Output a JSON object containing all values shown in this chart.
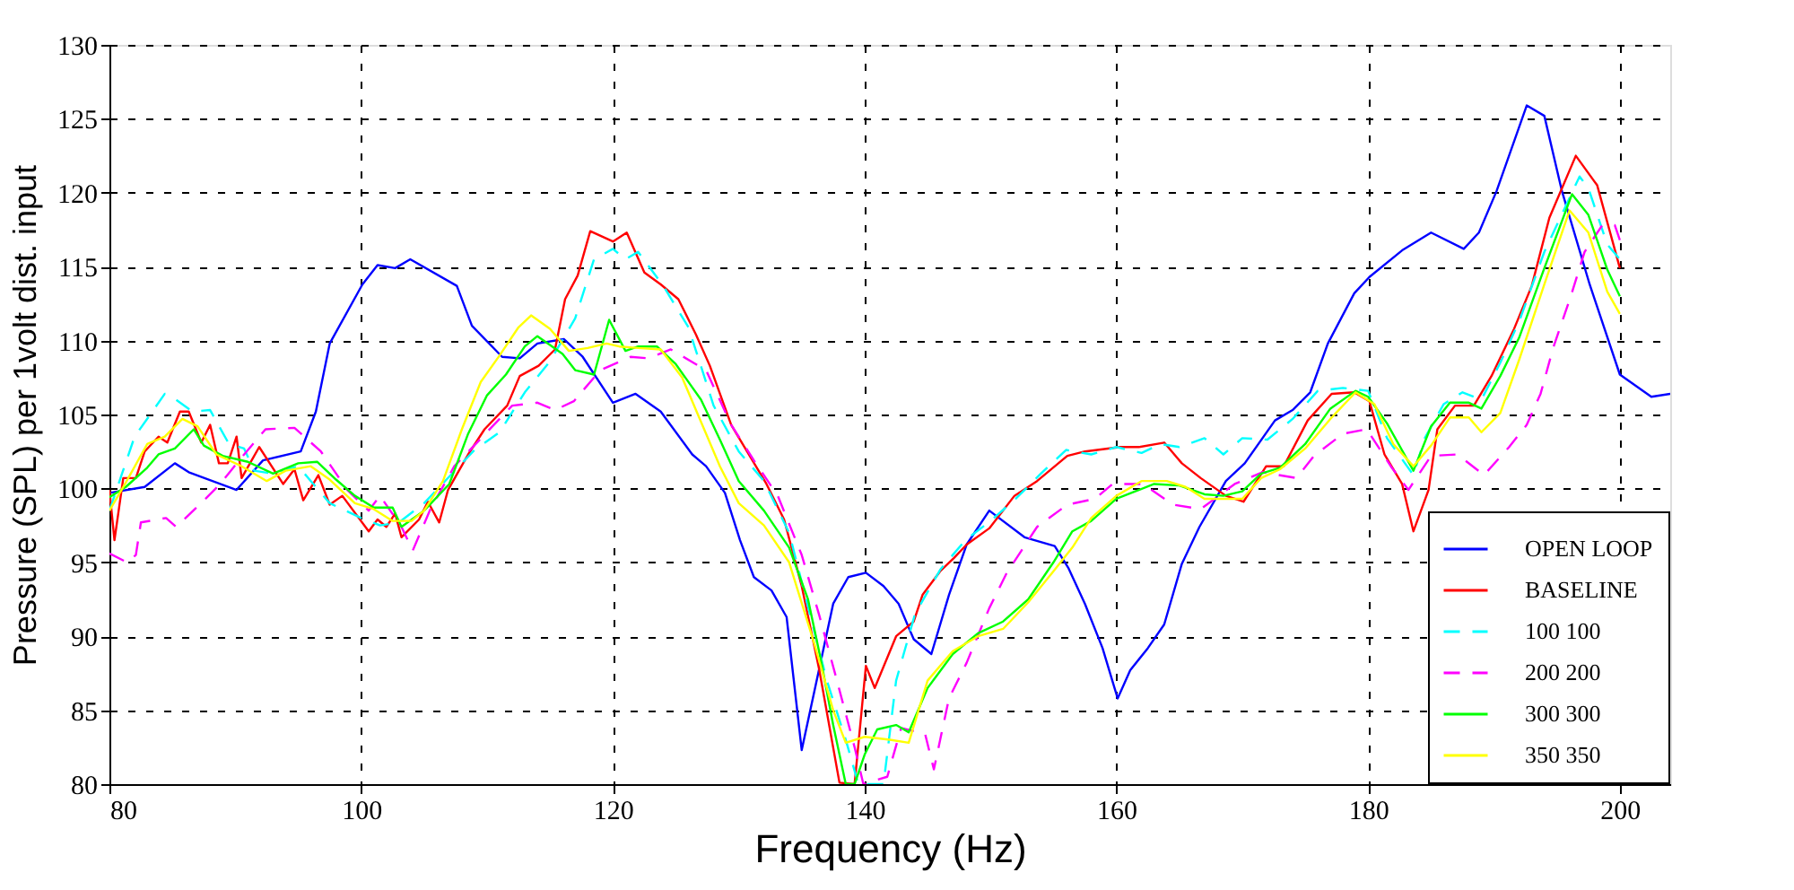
{
  "chart_data": {
    "type": "line",
    "xlabel": "Frequency (Hz)",
    "ylabel": "Pressure  (SPL) per 1volt dist. input",
    "xlim": [
      80,
      204
    ],
    "xticks": [
      80,
      100,
      120,
      140,
      160,
      180,
      200
    ],
    "ylim": [
      80,
      130
    ],
    "yticks": [
      80,
      85,
      90,
      95,
      100,
      105,
      110,
      115,
      120,
      125,
      130
    ],
    "grid": true,
    "legend": "bottom right",
    "marker": "none",
    "series": [
      {
        "name": "OPEN LOOP",
        "color": "#0000ff",
        "line_style": "solid",
        "x": [
          80,
          82.8,
          85.2,
          86.3,
          90.1,
          92.2,
          95.2,
          96.4,
          97.5,
          100.1,
          101.3,
          102.7,
          103.9,
          107.6,
          108.8,
          111.2,
          112.6,
          114.0,
          116.1,
          117.6,
          120,
          121.8,
          123.8,
          126.3,
          127.4,
          128.9,
          130.1,
          131.2,
          132.6,
          133.8,
          135.0,
          137.5,
          138.7,
          140.1,
          141.5,
          142.7,
          143.9,
          145.3,
          146.7,
          148.1,
          149.9,
          152.7,
          155.1,
          156.2,
          157.5,
          158.9,
          160.1,
          161.1,
          162.5,
          163.8,
          165.2,
          166.6,
          168.7,
          170.2,
          172.6,
          174.0,
          175.4,
          176.8,
          178.9,
          180.1,
          182.7,
          185.0,
          187.6,
          188.8,
          190.2,
          192.6,
          194.0,
          195.4,
          197.6,
          200,
          202.5,
          204
        ],
        "values": [
          99.7,
          100.1,
          101.7,
          101.1,
          99.9,
          101.9,
          102.5,
          105.2,
          109.8,
          113.8,
          115.1,
          114.9,
          115.5,
          113.7,
          111.0,
          108.9,
          108.8,
          109.8,
          110.1,
          108.9,
          105.8,
          106.4,
          105.2,
          102.3,
          101.5,
          99.7,
          96.5,
          94.0,
          93.1,
          91.3,
          82.3,
          92.2,
          94.0,
          94.3,
          93.4,
          92.2,
          89.8,
          88.8,
          92.8,
          96.2,
          98.5,
          96.7,
          96.1,
          94.6,
          92.2,
          89.2,
          85.8,
          87.7,
          89.2,
          90.8,
          94.9,
          97.4,
          100.5,
          101.7,
          104.6,
          105.3,
          106.5,
          109.8,
          113.2,
          114.3,
          116.1,
          117.3,
          116.2,
          117.3,
          120.1,
          125.9,
          125.2,
          120.1,
          113.8,
          107.7,
          106.2,
          106.4
        ]
      },
      {
        "name": "BASELINE",
        "color": "#ff0000",
        "line_style": "solid",
        "x": [
          80,
          80.4,
          81.1,
          82.1,
          82.8,
          83.9,
          84.6,
          85.6,
          86.3,
          87.3,
          88.0,
          88.7,
          89.4,
          90.1,
          90.5,
          91.9,
          93.8,
          94.7,
          95.4,
          96.6,
          97.5,
          98.5,
          100.6,
          101.3,
          102.0,
          102.7,
          103.2,
          104.6,
          105.3,
          106.2,
          106.9,
          108.5,
          109.8,
          111.6,
          112.6,
          114.1,
          115.4,
          116.2,
          117.2,
          118.2,
          120,
          121.1,
          122.5,
          123.8,
          125.2,
          126.6,
          127.7,
          129.4,
          132.2,
          133.6,
          135.0,
          136.4,
          138.0,
          139.2,
          140.1,
          140.8,
          142.5,
          143.9,
          144.6,
          146.0,
          147.1,
          148.1,
          149.9,
          151.9,
          153.7,
          156.1,
          157.5,
          160.3,
          161.8,
          163.8,
          165.2,
          166.7,
          168.7,
          170.1,
          171.9,
          173.3,
          175.2,
          177.1,
          178.9,
          180.1,
          181.3,
          182.7,
          183.6,
          184.8,
          185.5,
          186.9,
          188.4,
          189.8,
          191.6,
          193.0,
          194.4,
          196.5,
          198.2,
          200
        ],
        "values": [
          99.9,
          96.5,
          100.7,
          100.7,
          102.5,
          103.5,
          103.1,
          105.2,
          105.2,
          103.1,
          104.3,
          101.7,
          101.7,
          103.5,
          100.7,
          102.8,
          100.3,
          101.3,
          99.2,
          100.9,
          98.9,
          99.5,
          97.1,
          97.9,
          97.4,
          98.3,
          96.7,
          97.9,
          99.1,
          97.7,
          99.9,
          102.3,
          104.0,
          105.6,
          107.6,
          108.3,
          109.4,
          112.8,
          114.4,
          117.4,
          116.7,
          117.3,
          114.6,
          113.8,
          112.8,
          110.4,
          108.3,
          104.3,
          100.3,
          97.9,
          93.4,
          87.7,
          80.1,
          80,
          88.0,
          86.5,
          90.0,
          91.0,
          92.8,
          94.4,
          95.3,
          96.2,
          97.3,
          99.5,
          100.5,
          102.2,
          102.5,
          102.8,
          102.8,
          103.1,
          101.7,
          100.7,
          99.5,
          99.1,
          101.5,
          101.5,
          104.6,
          106.4,
          106.5,
          105.9,
          102.3,
          100.3,
          97.1,
          99.9,
          104.0,
          105.6,
          105.6,
          107.6,
          110.8,
          113.7,
          118.3,
          122.5,
          120.5,
          114.9
        ]
      },
      {
        "name": "100 100",
        "color": "#00ffff",
        "line_style": "dashed",
        "x": [
          80,
          81,
          82,
          84.4,
          85.3,
          86.6,
          88,
          89.5,
          90.7,
          91.5,
          93,
          95,
          96,
          97.5,
          100,
          101.5,
          103,
          105,
          107,
          109,
          111,
          113,
          115,
          117,
          118.5,
          120,
          121,
          122,
          124,
          126,
          128,
          130,
          132,
          134,
          135.5,
          137,
          138.5,
          139.5,
          140.5,
          141.5,
          142.5,
          144,
          146,
          148,
          150,
          152,
          154,
          156,
          158,
          160,
          162,
          163.5,
          165,
          167,
          168.5,
          170,
          172,
          174,
          176,
          178,
          180,
          181.5,
          183.6,
          184.5,
          186,
          187.5,
          189,
          190.5,
          192,
          194,
          196.8,
          197.5,
          199,
          200
        ],
        "values": [
          98.5,
          101,
          103.5,
          106.4,
          106,
          105.2,
          105.3,
          103,
          102.7,
          101.2,
          101,
          101.5,
          100.5,
          99,
          98,
          97.5,
          97.7,
          99,
          100.8,
          102.6,
          103.8,
          106.5,
          108.6,
          111.5,
          115.5,
          116.2,
          115.5,
          116,
          113.7,
          110.9,
          105.6,
          102.5,
          100.5,
          97,
          92,
          87,
          83,
          80,
          80,
          80,
          87,
          91.5,
          94.5,
          96.5,
          97.8,
          99.3,
          101,
          102.6,
          102.3,
          102.8,
          102.4,
          103,
          102.8,
          103.4,
          102.3,
          103.4,
          103.3,
          104.7,
          106.6,
          106.8,
          106.6,
          103.4,
          100.9,
          103.4,
          105.7,
          106.5,
          106,
          108.5,
          111.3,
          116,
          121.1,
          120.3,
          116.5,
          115.5
        ]
      },
      {
        "name": "200 200",
        "color": "#ff00ff",
        "line_style": "dashed",
        "x": [
          80,
          81.4,
          82.1,
          82.5,
          84.5,
          85.3,
          87.4,
          88.8,
          90.5,
          92.4,
          94.7,
          96.8,
          98.9,
          100.6,
          101.5,
          103.2,
          104.1,
          105.5,
          107.4,
          109.2,
          112.0,
          114.0,
          115.4,
          116.9,
          119.0,
          121.4,
          122.8,
          124.6,
          127.4,
          129.4,
          131.2,
          133.1,
          135.0,
          136.4,
          137.8,
          139.2,
          139.9,
          141.8,
          142.9,
          144.8,
          145.5,
          146.7,
          148.1,
          149.9,
          151.3,
          153.7,
          156.1,
          158.3,
          159.7,
          162.1,
          164.5,
          166.7,
          169.4,
          171.6,
          174.3,
          175.7,
          178.0,
          179.9,
          181.8,
          183.2,
          185.0,
          187.1,
          189.2,
          191.2,
          192.6,
          193.7,
          194.7,
          196.1,
          197.2,
          198.6,
          199.6,
          200
        ],
        "values": [
          95.6,
          95.0,
          95.5,
          97.7,
          98.0,
          97.4,
          99.1,
          100.3,
          102.1,
          104.0,
          104.1,
          102.5,
          99.9,
          98.5,
          99.5,
          97.4,
          95.8,
          98.6,
          101.5,
          103.1,
          105.6,
          105.8,
          105.3,
          105.9,
          108.0,
          108.9,
          108.8,
          109.4,
          108.0,
          104.3,
          101.9,
          99.5,
          95.5,
          91.4,
          87.0,
          82.5,
          80,
          80.5,
          83.8,
          83.4,
          81.0,
          85.8,
          88.2,
          91.9,
          94.3,
          97.4,
          98.9,
          99.3,
          100.3,
          100.3,
          98.9,
          98.6,
          100.3,
          101.1,
          100.7,
          102.2,
          103.7,
          104.0,
          101.5,
          99.9,
          102.2,
          102.3,
          100.9,
          102.8,
          104.3,
          106.4,
          109.5,
          113.0,
          116.0,
          117.8,
          117.8,
          116.8
        ]
      },
      {
        "name": "300 300",
        "color": "#00ff00",
        "line_style": "solid",
        "x": [
          80,
          81.3,
          83,
          83.9,
          85.2,
          86.7,
          87.5,
          89,
          91,
          93,
          95,
          96.5,
          98,
          99.5,
          101,
          102.5,
          103.2,
          105,
          107,
          108.5,
          110,
          111.5,
          113,
          114,
          115,
          116,
          117,
          118.5,
          119.7,
          121,
          122,
          123.5,
          125,
          127,
          128.5,
          130,
          132,
          134,
          135.5,
          136.5,
          137.5,
          138.5,
          139.2,
          140,
          141,
          142.5,
          143.5,
          145,
          147,
          149,
          151,
          153,
          155,
          156.5,
          158,
          160,
          161.5,
          163,
          165,
          167,
          168.5,
          170,
          171.5,
          173,
          175,
          177,
          179,
          180,
          181.5,
          183.6,
          185,
          186.5,
          188,
          189,
          190.5,
          192,
          194,
          196.2,
          197.5,
          199,
          200
        ],
        "values": [
          99.4,
          100.1,
          101.4,
          102.3,
          102.7,
          104,
          102.9,
          102.2,
          101.8,
          101.0,
          101.7,
          101.8,
          100.6,
          99.5,
          98.7,
          98.7,
          97.4,
          98.5,
          100.3,
          103.7,
          106.3,
          107.7,
          109.6,
          110.3,
          109.7,
          109.1,
          108.0,
          107.7,
          111.4,
          109.3,
          109.6,
          109.6,
          108.4,
          106,
          103.3,
          100.5,
          98.5,
          96,
          92.5,
          88.5,
          84,
          80,
          80,
          82,
          83.7,
          84,
          83.5,
          86.5,
          88.8,
          90.2,
          91,
          92.5,
          95,
          97.1,
          97.8,
          99.3,
          99.8,
          100.3,
          100.2,
          99.6,
          99.5,
          99.8,
          101,
          101.4,
          103,
          105.4,
          106.6,
          106.2,
          104.4,
          101.2,
          104.2,
          105.8,
          105.8,
          105.4,
          107.6,
          110.2,
          114.9,
          119.9,
          118.5,
          114.8,
          113
        ]
      },
      {
        "name": "350 350",
        "color": "#ffff00",
        "line_style": "solid",
        "x": [
          80,
          81.3,
          83,
          84.4,
          85.8,
          87,
          88.5,
          90.5,
          92.5,
          94,
          96,
          97.5,
          99.5,
          101,
          102.5,
          104,
          105,
          106.5,
          108,
          109.5,
          111,
          112.5,
          113.5,
          115,
          116.5,
          118,
          119.5,
          120.5,
          122,
          123.8,
          125.5,
          127,
          128.5,
          130,
          132,
          134,
          136,
          137.5,
          138.5,
          140,
          142,
          143.5,
          145,
          147,
          149,
          151,
          153,
          155,
          156.5,
          158,
          160,
          162,
          164,
          165.5,
          167,
          168.5,
          170,
          171.5,
          173,
          175,
          177,
          179,
          180.5,
          182,
          183.6,
          185,
          186.5,
          188,
          189,
          190.5,
          192,
          194,
          196,
          197.5,
          199,
          200
        ],
        "values": [
          98.5,
          100.4,
          103,
          103.5,
          104.7,
          104.2,
          102.3,
          101.5,
          100.5,
          101.2,
          101.5,
          100.6,
          99,
          98.6,
          97.8,
          97.8,
          98.5,
          100.5,
          104,
          107.2,
          109,
          110.9,
          111.7,
          110.8,
          109.3,
          109.5,
          109.8,
          109.6,
          109.5,
          109.4,
          107.5,
          104.5,
          101.5,
          99,
          97.5,
          95,
          89.5,
          85,
          82.8,
          83.2,
          83.0,
          82.8,
          87,
          89,
          90,
          90.5,
          92.3,
          94.4,
          96,
          98,
          99.5,
          100.5,
          100.5,
          100.1,
          99.3,
          99.3,
          99.3,
          100.7,
          101.3,
          102.7,
          104.7,
          106.5,
          105.7,
          103,
          101.5,
          102.9,
          104.8,
          104.8,
          103.8,
          105.1,
          108.7,
          113.8,
          118.8,
          117.3,
          113.3,
          111.8
        ]
      }
    ]
  }
}
